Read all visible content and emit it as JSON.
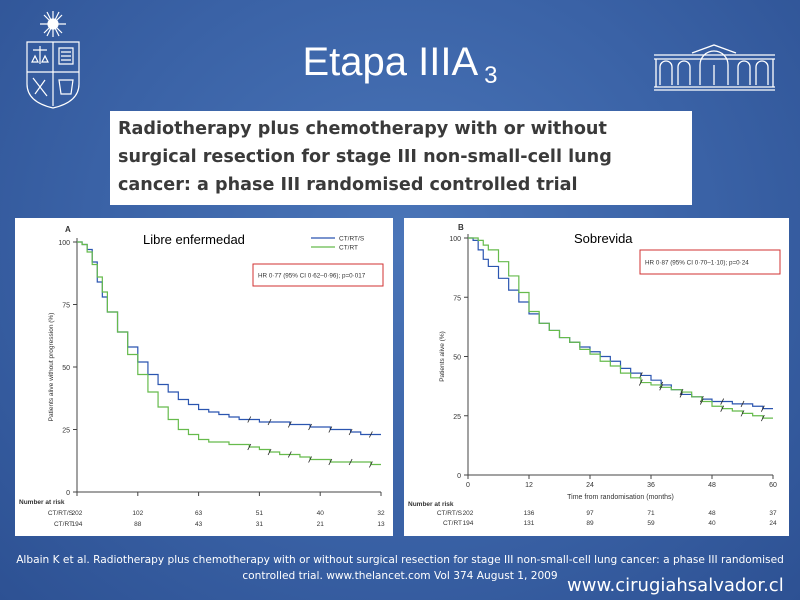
{
  "slide": {
    "title": "Etapa IIIA",
    "title_suffix": "3",
    "box_title": "Radiotherapy plus chemotherapy with or without surgical resection for stage III non-small-cell lung cancer: a phase III randomised controlled trial",
    "citation": "Albain K et al. Radiotherapy plus chemotherapy with or without surgical resection for stage III non-small-cell lung cancer: a phase III randomised controlled trial. www.thelancet.com Vol 374 August 1, 2009",
    "website": "www.cirugiahsalvador.cl",
    "colors": {
      "background": "#3a63a5",
      "ct_rt_s": "#2b55b0",
      "ct_rt": "#66bb4c",
      "hr_box_border": "#d23232"
    }
  },
  "chart_data": [
    {
      "type": "line",
      "panel_letter": "A",
      "overlay_label": "Libre enfermedad",
      "ylabel": "Patients alive without progression (%)",
      "xlabel": "",
      "ylim": [
        0,
        100
      ],
      "xlim": [
        0,
        60
      ],
      "yticks": [
        "0",
        "25",
        "50",
        "75",
        "100"
      ],
      "legend": [
        "CT/RT/S",
        "CT/RT"
      ],
      "legend_position": "top-right",
      "hr_text": "HR 0·77 (95% CI 0·62–0·96); p=0·017",
      "series": [
        {
          "name": "CT/RT/S",
          "x": [
            0,
            1,
            2,
            3,
            4,
            5,
            6,
            8,
            10,
            12,
            14,
            16,
            18,
            20,
            22,
            24,
            26,
            28,
            30,
            32,
            34,
            36,
            38,
            40,
            42,
            44,
            46,
            48,
            50,
            52,
            54,
            56,
            58,
            60
          ],
          "y": [
            100,
            99,
            97,
            92,
            84,
            78,
            72,
            64,
            58,
            52,
            47,
            43,
            40,
            37,
            35,
            33,
            32,
            31,
            30,
            29,
            29,
            28,
            28,
            28,
            27,
            27,
            26,
            26,
            25,
            25,
            24,
            23,
            23,
            23
          ]
        },
        {
          "name": "CT/RT",
          "x": [
            0,
            1,
            2,
            3,
            4,
            5,
            6,
            8,
            10,
            12,
            14,
            16,
            18,
            20,
            22,
            24,
            26,
            28,
            30,
            32,
            34,
            36,
            38,
            40,
            42,
            44,
            46,
            48,
            50,
            52,
            54,
            56,
            58,
            60
          ],
          "y": [
            100,
            99,
            96,
            91,
            86,
            80,
            72,
            64,
            55,
            47,
            40,
            34,
            29,
            25,
            23,
            21,
            20,
            20,
            19,
            19,
            18,
            17,
            16,
            15,
            15,
            14,
            13,
            13,
            12,
            12,
            12,
            12,
            11,
            11
          ]
        }
      ],
      "risk_table": {
        "title": "Number at risk",
        "x": [
          0,
          12,
          24,
          36,
          48,
          60
        ],
        "rows": [
          {
            "label": "CT/RT/S",
            "values": [
              "202",
              "102",
              "63",
              "51",
              "40",
              "32"
            ]
          },
          {
            "label": "CT/RT",
            "values": [
              "194",
              "88",
              "43",
              "31",
              "21",
              "13"
            ]
          }
        ]
      }
    },
    {
      "type": "line",
      "panel_letter": "B",
      "overlay_label": "Sobrevida",
      "ylabel": "Patients alive (%)",
      "xlabel": "Time from randomisation (months)",
      "ylim": [
        0,
        100
      ],
      "xlim": [
        0,
        60
      ],
      "xticks": [
        "0",
        "12",
        "24",
        "36",
        "48",
        "60"
      ],
      "yticks": [
        "0",
        "25",
        "50",
        "75",
        "100"
      ],
      "hr_text": "HR 0·87 (95% CI 0·70–1·10); p=0·24",
      "series": [
        {
          "name": "CT/RT/S",
          "x": [
            0,
            1,
            2,
            3,
            4,
            6,
            8,
            10,
            12,
            14,
            16,
            18,
            20,
            22,
            24,
            26,
            28,
            30,
            32,
            34,
            36,
            38,
            40,
            42,
            44,
            46,
            48,
            50,
            52,
            54,
            56,
            58,
            60
          ],
          "y": [
            100,
            99,
            95,
            91,
            88,
            83,
            78,
            73,
            68,
            64,
            61,
            58,
            56,
            54,
            52,
            50,
            48,
            45,
            43,
            42,
            40,
            38,
            36,
            34,
            33,
            32,
            31,
            31,
            30,
            30,
            29,
            28,
            28
          ]
        },
        {
          "name": "CT/RT",
          "x": [
            0,
            1,
            2,
            3,
            4,
            6,
            8,
            10,
            12,
            14,
            16,
            18,
            20,
            22,
            24,
            26,
            28,
            30,
            32,
            34,
            36,
            38,
            40,
            42,
            44,
            46,
            48,
            50,
            52,
            54,
            56,
            58,
            60
          ],
          "y": [
            100,
            100,
            99,
            97,
            95,
            90,
            84,
            77,
            69,
            64,
            61,
            58,
            56,
            53,
            51,
            48,
            46,
            43,
            41,
            39,
            38,
            37,
            36,
            35,
            33,
            31,
            29,
            28,
            27,
            26,
            25,
            24,
            24
          ]
        }
      ],
      "risk_table": {
        "title": "Number at risk",
        "x": [
          0,
          12,
          24,
          36,
          48,
          60
        ],
        "rows": [
          {
            "label": "CT/RT/S",
            "values": [
              "202",
              "136",
              "97",
              "71",
              "48",
              "37"
            ]
          },
          {
            "label": "CT/RT",
            "values": [
              "194",
              "131",
              "89",
              "59",
              "40",
              "24"
            ]
          }
        ]
      }
    }
  ]
}
